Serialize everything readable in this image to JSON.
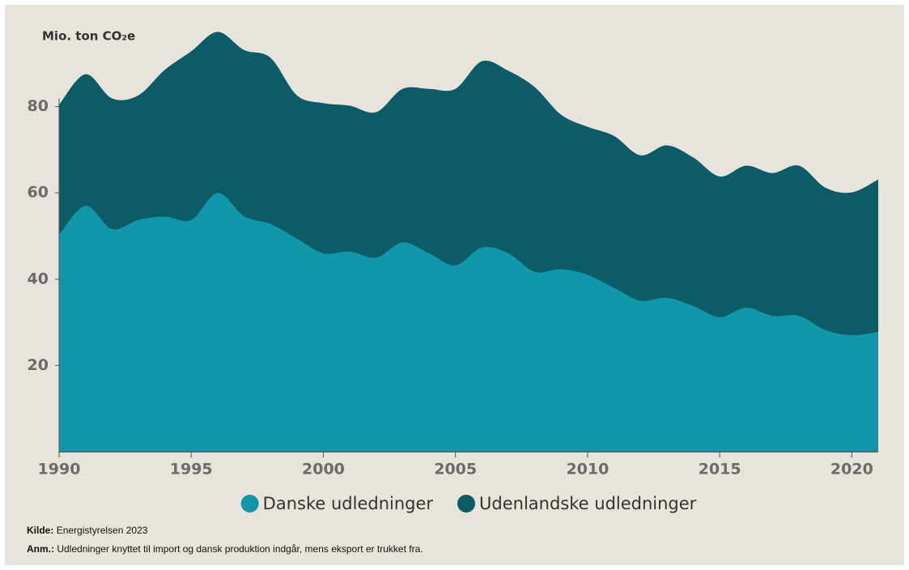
{
  "chart_data": {
    "type": "stacked-area",
    "unit_label": "Mio. ton CO₂e",
    "x": [
      1990,
      1991,
      1992,
      1993,
      1994,
      1995,
      1996,
      1997,
      1998,
      1999,
      2000,
      2001,
      2002,
      2003,
      2004,
      2005,
      2006,
      2007,
      2008,
      2009,
      2010,
      2011,
      2012,
      2013,
      2014,
      2015,
      2016,
      2017,
      2018,
      2019,
      2020,
      2021
    ],
    "xlim": [
      1990,
      2021
    ],
    "xticks": [
      1990,
      1995,
      2000,
      2005,
      2010,
      2015,
      2020
    ],
    "ylim": [
      0,
      100
    ],
    "yticks": [
      20,
      40,
      60,
      80
    ],
    "series": [
      {
        "name": "Danske udledninger",
        "color": "#1197aa",
        "values": [
          50.3,
          57,
          51.6,
          53.7,
          54.5,
          53.7,
          60,
          54.6,
          52.8,
          49.4,
          46,
          46.4,
          45,
          48.5,
          46,
          43.2,
          47.3,
          46,
          41.7,
          42.3,
          41,
          38,
          35,
          35.7,
          33.8,
          31.2,
          33.4,
          31.5,
          31.5,
          28.2,
          27,
          27.8
        ]
      },
      {
        "name": "Udenlandske udledninger",
        "color": "#0b5c66",
        "values": [
          30.1,
          30.5,
          30.3,
          28.9,
          34,
          39.1,
          37.3,
          38.5,
          38.5,
          33.2,
          34.8,
          33.8,
          33.7,
          35.6,
          38.1,
          40.9,
          43.2,
          42.3,
          42.8,
          35.8,
          34.3,
          35.2,
          33.7,
          35.3,
          34.4,
          32.6,
          32.9,
          33.1,
          34.8,
          33,
          33.1,
          35.3
        ]
      }
    ],
    "source": {
      "label": "Kilde:",
      "text": "Energistyrelsen 2023"
    },
    "note": {
      "label": "Anm.:",
      "text": "Udledninger knyttet til import og dansk produktion indgår, mens eksport er trukket fra."
    }
  }
}
